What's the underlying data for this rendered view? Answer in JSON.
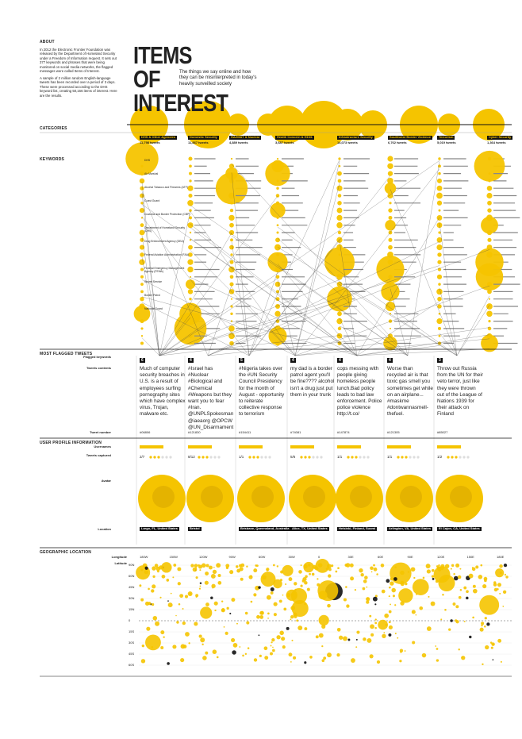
{
  "about": {
    "heading": "ABOUT",
    "paragraphs": [
      "In 2012 the Electronic Frontier Foundation was released by the Department of Homeland Security under a Freedom of Information request. It sets out 377 keywords and phrases that were being monitored on social media networks, the flagged messages were called Items of Interest.",
      "A sample of 2 million random English-language tweets has been recorded over a period of 3 days. These were processed according to the DHS keyword list, creating 50,166 items of interest. Here are the results."
    ]
  },
  "title": {
    "lines": [
      "ITEMS",
      "OF",
      "INTEREST"
    ],
    "subtitle": "The things we say online and how they can be misinterpreted in today's heavily surveilled society"
  },
  "categories": {
    "heading": "CATEGORIES",
    "items": [
      {
        "name": "DHS & Other Agencies",
        "count": "11,798 tweets"
      },
      {
        "name": "Domestic Security",
        "count": "11,867 tweets"
      },
      {
        "name": "HAZMAT & Nuclear",
        "count": "4,889 tweets"
      },
      {
        "name": "Health Concern & H1N1",
        "count": "3,687 tweets"
      },
      {
        "name": "Infrastructure Security",
        "count": "14,073 tweets"
      },
      {
        "name": "Southwest Border Violence",
        "count": "6,762 tweets"
      },
      {
        "name": "Terrorism",
        "count": "5,019 tweets"
      },
      {
        "name": "Cyber Security",
        "count": "1,364 tweets"
      }
    ]
  },
  "keywords": {
    "heading": "KEYWORDS",
    "sample": [
      "DHS",
      "Air Marshal",
      "Alcohol Tobacco and Firearms (ATF)",
      "Coast Guard",
      "Customs and Border Protection (CBP)",
      "Department of Homeland Security (DHS)",
      "Drug Enforcement Agency (DEA)",
      "Federal Aviation Administration (FAA)",
      "Federal Emergency Management Agency (FEMA)",
      "Secret Service",
      "Border Patrol",
      "National Guard"
    ]
  },
  "tweets": {
    "heading": "MOST FLAGGED TWEETS",
    "row_labels": [
      "Flagged keywords",
      "Tweets contents",
      "Tweet number"
    ],
    "items": [
      {
        "flags": "6",
        "text": "Much of computer security breaches in U.S. is a result of employees surfing pornography sites which have complex virus, Trojan, malware etc.",
        "number": "#06806"
      },
      {
        "flags": "4",
        "text": "#Israel has #Nuclear #Biological and #Chemical #Weapons but they want you to fear #Iran. @UNPLSpokesman @iaeaorg @OPCW @UN_Disarmament",
        "number": "#121830"
      },
      {
        "flags": "5",
        "text": "#Nigeria takes over the #UN Security Council Presidency for the month of August - opportunity to reiterate collective response to terrorism",
        "number": "#154411"
      },
      {
        "flags": "4",
        "text": "my dad is a border patrol agent you'll be fine???? alcohol isn't a drug just put them in your trunk",
        "number": "#74081"
      },
      {
        "flags": "4",
        "text": "cops messing with people giving homeless people lunch.Bad policy leads to bad law enforcement. Police police violence http://t.co/",
        "number": "#147874"
      },
      {
        "flags": "4",
        "text": "Worse than recycled air is that toxic gas smell you sometimes get while on an airplane... #maskme #dontwannasmell-thefuel.",
        "number": "#121305"
      },
      {
        "flags": "3",
        "text": "Throw out Russia from the UN for their veto terror, just like they were thrown out of the League of Nations 1939 for their attack on Finland",
        "number": "#85027"
      }
    ]
  },
  "profiles": {
    "heading": "USER PROFILE INFORMATION",
    "row_labels": [
      "Usernames",
      "Tweets captured",
      "Avatar",
      "Location"
    ],
    "items": [
      {
        "captured": "2/7",
        "location": "Largo, FL, United States"
      },
      {
        "captured": "8/12",
        "location": "Bristol"
      },
      {
        "captured": "1/1",
        "location": "Brisbane, Queensland, Australia"
      },
      {
        "captured": "5/6",
        "location": "Alice, TX, United States"
      },
      {
        "captured": "1/1",
        "location": "Helsinki, Finland, Suomi"
      },
      {
        "captured": "1/1",
        "location": "Arlington, VA, United States"
      },
      {
        "captured": "1/2",
        "location": "El Cajon, CA, United States"
      }
    ]
  },
  "geo": {
    "heading": "GEOGRAPHIC LOCATION",
    "axis_labels": [
      "Longitude",
      "Latitude"
    ],
    "longitudes": [
      "180W",
      "150W",
      "120W",
      "90W",
      "60W",
      "30W",
      "0",
      "30E",
      "60E",
      "90E",
      "120E",
      "150E",
      "180E"
    ],
    "latitudes": [
      "90N",
      "60N",
      "45N",
      "30N",
      "15N",
      "0",
      "15S",
      "30S",
      "45S",
      "60S"
    ]
  }
}
